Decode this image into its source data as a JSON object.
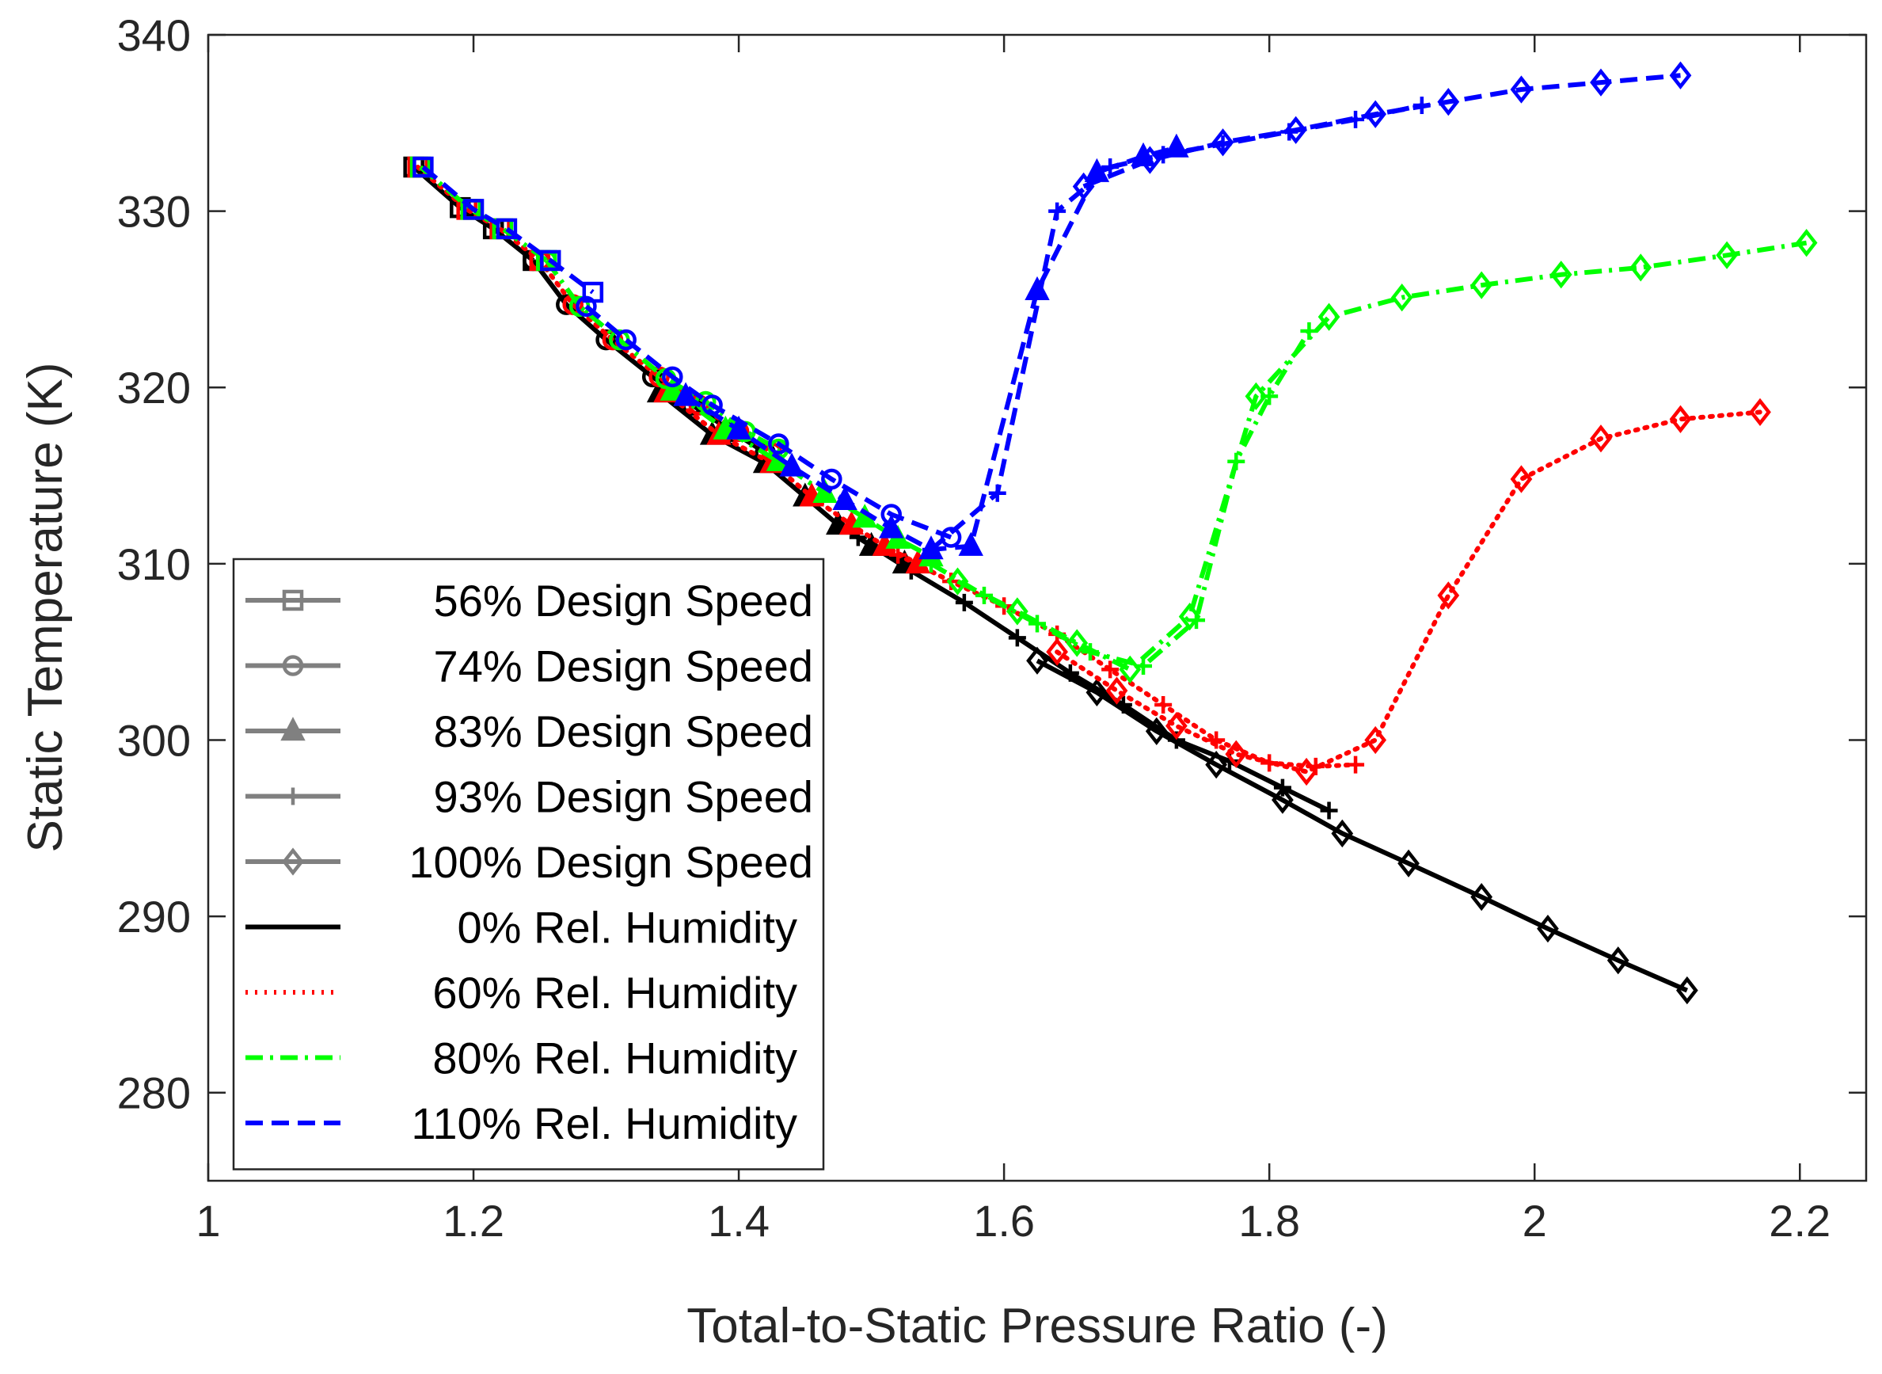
{
  "chart_data": {
    "type": "line",
    "title": "",
    "xlabel": "Total-to-Static Pressure Ratio (-)",
    "ylabel": "Static Temperature (K)",
    "xlim": [
      1,
      2.25
    ],
    "ylim": [
      275,
      340
    ],
    "xticks": [
      1,
      1.2,
      1.4,
      1.6,
      1.8,
      2,
      2.2
    ],
    "xtick_labels": [
      "1",
      "1.2",
      "1.4",
      "1.6",
      "1.8",
      "2",
      "2.2"
    ],
    "yticks": [
      280,
      290,
      300,
      310,
      320,
      330,
      340
    ],
    "ytick_labels": [
      "280",
      "290",
      "300",
      "310",
      "320",
      "330",
      "340"
    ],
    "grid": false,
    "legend_position": "lower-left",
    "legend": [
      {
        "label": "56% Design Speed",
        "kind": "marker",
        "marker": "square",
        "color": "#808080",
        "dash": "solid"
      },
      {
        "label": "74% Design Speed",
        "kind": "marker",
        "marker": "circle",
        "color": "#808080",
        "dash": "solid"
      },
      {
        "label": "83% Design Speed",
        "kind": "marker",
        "marker": "triangle",
        "color": "#808080",
        "dash": "solid"
      },
      {
        "label": "93% Design Speed",
        "kind": "marker",
        "marker": "plus",
        "color": "#808080",
        "dash": "solid"
      },
      {
        "label": "100% Design Speed",
        "kind": "marker",
        "marker": "diamond",
        "color": "#808080",
        "dash": "solid"
      },
      {
        "label": "0% Rel. Humidity",
        "kind": "line",
        "color": "#000000",
        "dash": "solid"
      },
      {
        "label": "60% Rel. Humidity",
        "kind": "line",
        "color": "#ff0000",
        "dash": "dotted"
      },
      {
        "label": "80% Rel. Humidity",
        "kind": "line",
        "color": "#00ff00",
        "dash": "dashdot"
      },
      {
        "label": "110% Rel. Humidity",
        "kind": "line",
        "color": "#0000ff",
        "dash": "dashed"
      }
    ],
    "series": [
      {
        "name": "0% RH, 56% speed",
        "humidity": "0%",
        "speed": "56%",
        "marker": "square",
        "color": "#000000",
        "dash": "solid",
        "x": [
          1.155,
          1.19,
          1.215,
          1.245
        ],
        "y": [
          332.5,
          330.2,
          329.0,
          327.2
        ]
      },
      {
        "name": "0% RH, 74% speed",
        "humidity": "0%",
        "speed": "74%",
        "marker": "circle",
        "color": "#000000",
        "dash": "solid",
        "x": [
          1.245,
          1.27,
          1.3,
          1.335,
          1.365,
          1.395,
          1.42
        ],
        "y": [
          327.2,
          324.7,
          322.7,
          320.6,
          319.0,
          317.5,
          316.3
        ]
      },
      {
        "name": "0% RH, 83% speed",
        "humidity": "0%",
        "speed": "83%",
        "marker": "triangle",
        "color": "#000000",
        "dash": "solid",
        "x": [
          1.34,
          1.38,
          1.42,
          1.45,
          1.475,
          1.5,
          1.525
        ],
        "y": [
          319.7,
          317.3,
          315.7,
          313.8,
          312.2,
          311.0,
          310.0
        ]
      },
      {
        "name": "0% RH, 93% speed",
        "humidity": "0%",
        "speed": "93%",
        "marker": "plus",
        "color": "#000000",
        "dash": "solid",
        "x": [
          1.49,
          1.53,
          1.57,
          1.61,
          1.65,
          1.69,
          1.73,
          1.77,
          1.81,
          1.845
        ],
        "y": [
          311.5,
          309.6,
          307.8,
          305.8,
          303.8,
          302.0,
          300.0,
          298.8,
          297.3,
          296.0
        ]
      },
      {
        "name": "0% RH, 100% speed",
        "humidity": "0%",
        "speed": "100%",
        "marker": "diamond",
        "color": "#000000",
        "dash": "solid",
        "x": [
          1.625,
          1.67,
          1.715,
          1.76,
          1.81,
          1.855,
          1.905,
          1.96,
          2.01,
          2.063,
          2.115
        ],
        "y": [
          304.5,
          302.7,
          300.5,
          298.6,
          296.6,
          294.7,
          293.0,
          291.1,
          289.3,
          287.5,
          285.8
        ]
      },
      {
        "name": "60% RH, 56% speed",
        "humidity": "60%",
        "speed": "56%",
        "marker": "square",
        "color": "#ff0000",
        "dash": "dotted",
        "x": [
          1.158,
          1.195,
          1.22,
          1.25
        ],
        "y": [
          332.5,
          330.1,
          329.0,
          327.2
        ]
      },
      {
        "name": "60% RH, 74% speed",
        "humidity": "60%",
        "speed": "74%",
        "marker": "circle",
        "color": "#ff0000",
        "dash": "dotted",
        "x": [
          1.25,
          1.275,
          1.305,
          1.34,
          1.37,
          1.4,
          1.425
        ],
        "y": [
          327.2,
          324.7,
          322.7,
          320.6,
          319.0,
          317.5,
          316.3
        ]
      },
      {
        "name": "60% RH, 83% speed",
        "humidity": "60%",
        "speed": "83%",
        "marker": "triangle",
        "color": "#ff0000",
        "dash": "dotted",
        "x": [
          1.345,
          1.385,
          1.425,
          1.455,
          1.485,
          1.51,
          1.535
        ],
        "y": [
          319.7,
          317.3,
          315.7,
          313.8,
          312.2,
          311.0,
          310.0
        ]
      },
      {
        "name": "60% RH, 93% speed",
        "humidity": "60%",
        "speed": "93%",
        "marker": "plus",
        "color": "#ff0000",
        "dash": "dotted",
        "x": [
          1.52,
          1.56,
          1.6,
          1.64,
          1.68,
          1.72,
          1.76,
          1.8,
          1.835,
          1.865
        ],
        "y": [
          310.5,
          309.0,
          307.6,
          306.0,
          304.0,
          302.0,
          300.0,
          298.7,
          298.5,
          298.6
        ]
      },
      {
        "name": "60% RH, 100% speed",
        "humidity": "60%",
        "speed": "100%",
        "marker": "diamond",
        "color": "#ff0000",
        "dash": "dotted",
        "x": [
          1.64,
          1.685,
          1.73,
          1.775,
          1.828,
          1.88,
          1.935,
          1.99,
          2.05,
          2.11,
          2.17
        ],
        "y": [
          305.0,
          302.8,
          300.8,
          299.2,
          298.2,
          300.0,
          308.2,
          314.8,
          317.1,
          318.2,
          318.6
        ]
      },
      {
        "name": "80% RH, 56% speed",
        "humidity": "80%",
        "speed": "56%",
        "marker": "square",
        "color": "#00ff00",
        "dash": "dashdot",
        "x": [
          1.16,
          1.198,
          1.222,
          1.255
        ],
        "y": [
          332.5,
          330.1,
          329.0,
          327.2
        ]
      },
      {
        "name": "80% RH, 74% speed",
        "humidity": "80%",
        "speed": "74%",
        "marker": "circle",
        "color": "#00ff00",
        "dash": "dashdot",
        "x": [
          1.255,
          1.28,
          1.31,
          1.345,
          1.375,
          1.405,
          1.43
        ],
        "y": [
          327.2,
          324.6,
          322.7,
          320.5,
          319.2,
          317.5,
          316.5
        ]
      },
      {
        "name": "80% RH, 83% speed",
        "humidity": "80%",
        "speed": "83%",
        "marker": "triangle",
        "color": "#00ff00",
        "dash": "dashdot",
        "x": [
          1.35,
          1.39,
          1.43,
          1.465,
          1.495,
          1.52,
          1.545
        ],
        "y": [
          319.8,
          317.6,
          315.8,
          314.0,
          312.6,
          311.4,
          310.4
        ]
      },
      {
        "name": "80% RH, 93% speed",
        "humidity": "80%",
        "speed": "93%",
        "marker": "plus",
        "color": "#00ff00",
        "dash": "dashdot",
        "x": [
          1.545,
          1.585,
          1.625,
          1.665,
          1.705,
          1.745,
          1.775,
          1.8,
          1.83
        ],
        "y": [
          310.0,
          308.2,
          306.6,
          305.0,
          304.2,
          306.8,
          315.8,
          319.5,
          323.2
        ]
      },
      {
        "name": "80% RH, 100% speed",
        "humidity": "80%",
        "speed": "100%",
        "marker": "diamond",
        "color": "#00ff00",
        "dash": "dashdot",
        "x": [
          1.565,
          1.61,
          1.655,
          1.695,
          1.74,
          1.79,
          1.845,
          1.9,
          1.96,
          2.02,
          2.08,
          2.145,
          2.205
        ],
        "y": [
          309.0,
          307.3,
          305.5,
          304.0,
          307.0,
          319.5,
          324.0,
          325.1,
          325.8,
          326.4,
          326.8,
          327.5,
          328.2
        ]
      },
      {
        "name": "110% RH, 56% speed",
        "humidity": "110%",
        "speed": "56%",
        "marker": "square",
        "color": "#0000ff",
        "dash": "dashed",
        "x": [
          1.162,
          1.2,
          1.225,
          1.258,
          1.29
        ],
        "y": [
          332.5,
          330.1,
          329.0,
          327.2,
          325.4
        ]
      },
      {
        "name": "110% RH, 74% speed",
        "humidity": "110%",
        "speed": "74%",
        "marker": "circle",
        "color": "#0000ff",
        "dash": "dashed",
        "x": [
          1.285,
          1.315,
          1.35,
          1.38,
          1.43,
          1.47,
          1.515,
          1.56
        ],
        "y": [
          324.6,
          322.7,
          320.6,
          319.0,
          316.8,
          314.8,
          312.8,
          311.5
        ]
      },
      {
        "name": "110% RH, 83% speed",
        "humidity": "110%",
        "speed": "83%",
        "marker": "triangle",
        "color": "#0000ff",
        "dash": "dashed",
        "x": [
          1.36,
          1.4,
          1.44,
          1.48,
          1.515,
          1.545,
          1.575,
          1.625,
          1.67,
          1.705,
          1.73
        ],
        "y": [
          319.5,
          317.6,
          315.5,
          313.6,
          312.0,
          310.8,
          311.0,
          325.5,
          332.2,
          333.1,
          333.6
        ]
      },
      {
        "name": "110% RH, 93% speed",
        "humidity": "110%",
        "speed": "93%",
        "marker": "plus",
        "color": "#0000ff",
        "dash": "dashed",
        "x": [
          1.545,
          1.595,
          1.64,
          1.68,
          1.72,
          1.765,
          1.815,
          1.865,
          1.915
        ],
        "y": [
          310.8,
          314.0,
          330.0,
          332.5,
          333.2,
          333.8,
          334.5,
          335.2,
          336.0
        ]
      },
      {
        "name": "110% RH, 100% speed",
        "humidity": "110%",
        "speed": "100%",
        "marker": "diamond",
        "color": "#0000ff",
        "dash": "dashed",
        "x": [
          1.66,
          1.71,
          1.765,
          1.82,
          1.88,
          1.935,
          1.99,
          2.05,
          2.11
        ],
        "y": [
          331.4,
          332.9,
          333.9,
          334.6,
          335.5,
          336.2,
          336.9,
          337.3,
          337.7
        ]
      }
    ]
  }
}
